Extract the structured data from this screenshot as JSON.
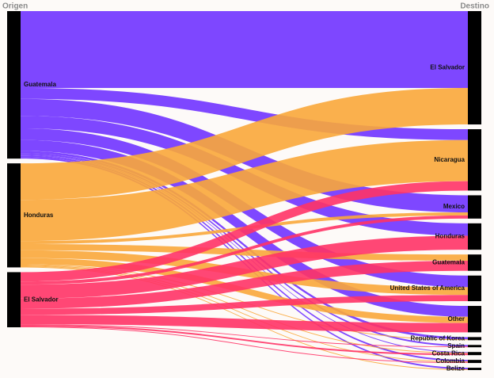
{
  "chart_data": {
    "type": "sankey",
    "left_label": "Origen",
    "right_label": "Destino",
    "node_color": "#000000",
    "targets": [
      "El Salvador",
      "Nicaragua",
      "Mexico",
      "Honduras",
      "Guatemala",
      "United States of America",
      "Other",
      "Republic of Korea",
      "Spain",
      "Costa Rica",
      "Colombia",
      "Belize"
    ],
    "series": [
      {
        "name": "Guatemala",
        "color": "#7033ff",
        "values": [
          99,
          14,
          22,
          16,
          0,
          15,
          14,
          3,
          2,
          1,
          2,
          2
        ]
      },
      {
        "name": "Honduras",
        "color": "#f9a73a",
        "values": [
          47,
          53,
          4,
          0,
          8,
          10,
          8,
          1,
          0,
          1,
          1,
          1
        ]
      },
      {
        "name": "El Salvador",
        "color": "#ff3366",
        "values": [
          0,
          12,
          4,
          18,
          13,
          8,
          12,
          0,
          1,
          2,
          1,
          0
        ]
      }
    ]
  }
}
